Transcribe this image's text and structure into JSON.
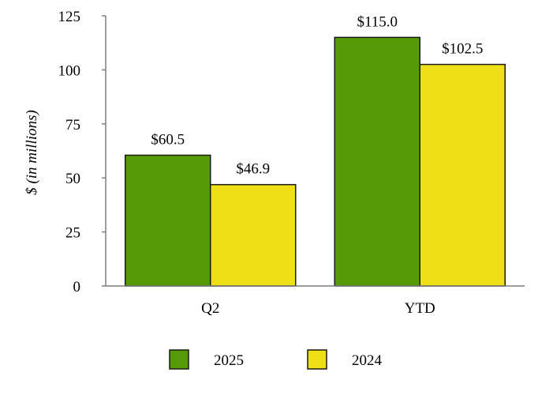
{
  "chart_data": {
    "type": "bar",
    "ylabel": "$ (in millions)",
    "ylim": [
      0,
      125
    ],
    "yticks": [
      0,
      25,
      50,
      75,
      100,
      125
    ],
    "categories": [
      "Q2",
      "YTD"
    ],
    "series": [
      {
        "name": "2025",
        "color": "#579a07",
        "values": [
          60.5,
          115.0
        ],
        "labels": [
          "$60.5",
          "$115.0"
        ]
      },
      {
        "name": "2024",
        "color": "#efdf17",
        "values": [
          46.9,
          102.5
        ],
        "labels": [
          "$46.9",
          "$102.5"
        ]
      }
    ],
    "grid": false,
    "legend": "bottom-center"
  }
}
